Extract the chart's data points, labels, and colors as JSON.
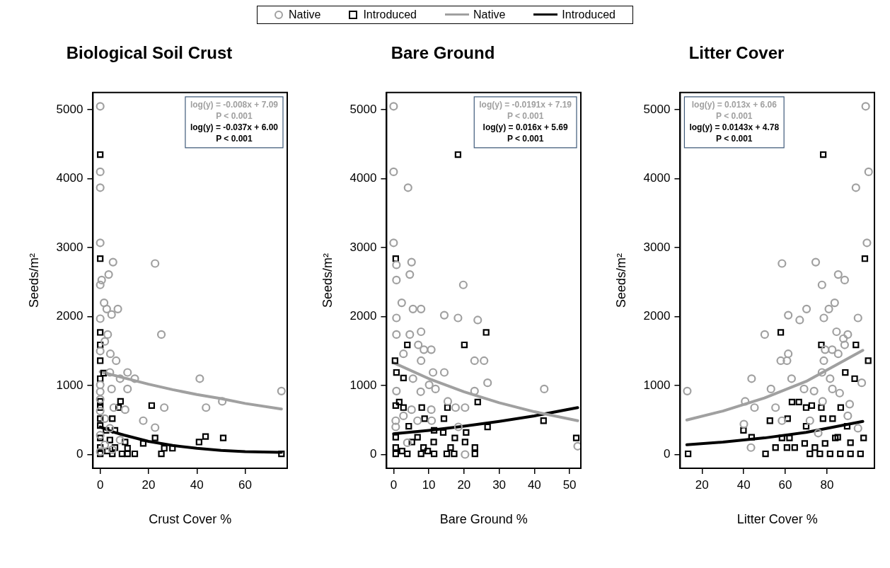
{
  "chart_data": [
    {
      "type": "scatter",
      "title": "Biological Soil Crust",
      "xlabel": "Crust Cover %",
      "ylabel": "Seeds/m²",
      "xlim": [
        -3,
        77.4
      ],
      "xticks": [
        0,
        20,
        40,
        60
      ],
      "ylim": [
        -200,
        5250
      ],
      "yticks": [
        0,
        1000,
        2000,
        3000,
        4000,
        5000
      ],
      "grid": false,
      "legend": "top",
      "annotations": [
        "log(y) = -0.008x + 7.09",
        "P < 0.001",
        "log(y) = -0.037x + 6.00",
        "P < 0.001"
      ],
      "series": [
        {
          "name": "Native",
          "type": "scatter",
          "marker": "circle",
          "color": "#a0a0a0",
          "x": [
            0,
            0,
            0,
            0,
            5.3,
            22.7,
            3.5,
            0.6,
            0,
            1.6,
            2.7,
            7.3,
            4.7,
            0,
            25.3,
            3.1,
            4.2,
            6.6,
            11.3,
            4,
            14.3,
            8.2,
            41.2,
            75,
            4.7,
            11.3,
            0,
            0,
            26.5,
            43.8,
            50.5,
            10.3,
            5.6,
            17.8,
            22.7,
            0,
            0,
            1.9,
            4,
            0,
            1.9,
            5,
            0,
            8.2,
            0,
            1.9
          ],
          "values": [
            5050,
            4100,
            3870,
            3070,
            2790,
            2770,
            2610,
            2530,
            2460,
            2200,
            2110,
            2110,
            2030,
            1970,
            1740,
            1740,
            1460,
            1360,
            1190,
            1190,
            1100,
            1100,
            1100,
            920,
            950,
            950,
            1010,
            910,
            680,
            680,
            770,
            650,
            680,
            490,
            390,
            800,
            630,
            520,
            380,
            280,
            140,
            70,
            40,
            210,
            1500,
            1640
          ]
        },
        {
          "name": "Introduced",
          "type": "scatter",
          "marker": "square",
          "color": "#000000",
          "x": [
            0,
            0,
            0,
            0,
            0,
            1.4,
            0,
            0,
            8.4,
            21.3,
            7.6,
            0,
            5,
            0,
            0,
            2.4,
            6.1,
            0,
            22.7,
            43.6,
            50.9,
            40.9,
            17.8,
            10.3,
            4,
            0,
            6.1,
            11.3,
            26.5,
            29.9,
            0,
            5,
            9,
            11.3,
            14.3,
            25.3,
            75,
            2.9
          ],
          "values": [
            4350,
            2840,
            1770,
            1590,
            1360,
            1180,
            1100,
            770,
            770,
            710,
            680,
            680,
            520,
            520,
            420,
            350,
            350,
            240,
            240,
            260,
            240,
            180,
            160,
            180,
            210,
            100,
            100,
            90,
            90,
            90,
            10,
            10,
            10,
            10,
            10,
            10,
            10,
            50
          ]
        },
        {
          "name": "Native",
          "type": "line",
          "marker": "none",
          "color": "#a0a0a0",
          "x": [
            0,
            10,
            20,
            30,
            40,
            50,
            60,
            75
          ],
          "values": [
            1200,
            1110,
            1020,
            940,
            870,
            810,
            740,
            660
          ]
        },
        {
          "name": "Introduced",
          "type": "line",
          "marker": "none",
          "color": "#000000",
          "x": [
            0,
            5,
            10,
            20,
            30,
            40,
            50,
            60,
            75
          ],
          "values": [
            400,
            330,
            280,
            190,
            130,
            90,
            60,
            40,
            30
          ]
        }
      ]
    },
    {
      "type": "scatter",
      "title": "Bare Ground",
      "xlabel": "Bare Ground %",
      "ylabel": "Seeds/m²",
      "xlim": [
        -2,
        53.2
      ],
      "xticks": [
        0,
        10,
        20,
        30,
        40,
        50
      ],
      "ylim": [
        -200,
        5250
      ],
      "yticks": [
        0,
        1000,
        2000,
        3000,
        4000,
        5000
      ],
      "grid": false,
      "annotations": [
        "log(y) = -0.0191x + 7.19",
        "P < 0.001",
        "log(y) = 0.016x + 5.69",
        "P < 0.001"
      ],
      "series": [
        {
          "type": "scatter",
          "marker": "circle",
          "color": "#a0a0a0",
          "x": [
            0,
            0,
            4.1,
            0,
            5.1,
            0.8,
            4.6,
            0.8,
            19.8,
            2.3,
            5.5,
            7.8,
            14.4,
            18.3,
            23.9,
            0.8,
            0.8,
            4.6,
            7.8,
            7,
            8.6,
            10.7,
            2.8,
            7.8,
            23,
            25.7,
            11.2,
            14.4,
            26.7,
            42.8,
            5.5,
            10.1,
            11.9,
            7.7,
            0.8,
            23,
            15.4,
            17.6,
            20.3,
            10.7,
            5.1,
            2.8,
            0.6,
            6.8,
            10.8,
            18.4,
            0.6,
            20.3,
            3.9,
            52.3
          ],
          "values": [
            5050,
            4100,
            3870,
            3070,
            2790,
            2750,
            2610,
            2530,
            2460,
            2200,
            2110,
            2110,
            2020,
            1980,
            1950,
            1980,
            1740,
            1740,
            1780,
            1590,
            1520,
            1520,
            1460,
            1360,
            1360,
            1360,
            1190,
            1190,
            1040,
            950,
            1100,
            1010,
            950,
            910,
            920,
            920,
            770,
            680,
            680,
            650,
            650,
            560,
            490,
            490,
            490,
            400,
            400,
            0,
            170,
            120
          ]
        },
        {
          "type": "scatter",
          "marker": "square",
          "color": "#000000",
          "x": [
            18.3,
            0.6,
            26.3,
            20.1,
            3.9,
            0.4,
            0.8,
            2.8,
            23.9,
            1.6,
            0.6,
            2.8,
            8,
            15.3,
            8.8,
            14.3,
            42.6,
            4.3,
            26.7,
            20.6,
            11.5,
            51.9,
            17.4,
            14.1,
            6.8,
            0.6,
            20.3,
            11.4,
            5.2,
            23.1,
            0.6,
            16.2,
            8.5,
            0.6,
            3.9,
            7.8,
            11.5,
            15.1,
            17.2,
            23.1,
            2.4,
            9.7
          ],
          "values": [
            4350,
            2840,
            1770,
            1590,
            1590,
            1360,
            1190,
            1110,
            760,
            760,
            710,
            680,
            680,
            680,
            520,
            520,
            490,
            410,
            400,
            320,
            350,
            240,
            240,
            320,
            250,
            250,
            180,
            180,
            180,
            100,
            100,
            100,
            100,
            10,
            10,
            10,
            10,
            10,
            10,
            10,
            50,
            50
          ]
        },
        {
          "type": "line",
          "marker": "none",
          "color": "#a0a0a0",
          "x": [
            0,
            10,
            20,
            30,
            40,
            52.3
          ],
          "values": [
            1330,
            1100,
            910,
            750,
            620,
            490
          ]
        },
        {
          "type": "line",
          "marker": "none",
          "color": "#000000",
          "x": [
            0,
            10,
            20,
            30,
            40,
            52.3
          ],
          "values": [
            300,
            350,
            410,
            480,
            560,
            680
          ]
        }
      ]
    },
    {
      "type": "scatter",
      "title": "Litter Cover",
      "xlabel": "Litter Cover %",
      "ylabel": "Seeds/m²",
      "xlim": [
        9.5,
        102.8
      ],
      "xticks": [
        20,
        40,
        60,
        80
      ],
      "ylim": [
        -200,
        5250
      ],
      "yticks": [
        0,
        1000,
        2000,
        3000,
        4000,
        5000
      ],
      "grid": false,
      "annotations": [
        "log(y) = 0.013x + 6.06",
        "P < 0.001",
        "log(y) = 0.0143x + 4.78",
        "P < 0.001"
      ],
      "series": [
        {
          "type": "scatter",
          "marker": "circle",
          "color": "#a0a0a0",
          "x": [
            98.6,
            100,
            93.9,
            99.2,
            58.4,
            74.6,
            85.4,
            88.5,
            77.6,
            83.7,
            61.4,
            70.2,
            80.9,
            66.9,
            78.5,
            94.9,
            50.1,
            84.6,
            90,
            87.9,
            88.5,
            61.4,
            57.8,
            60.8,
            79.1,
            82.5,
            85.4,
            78.5,
            43.8,
            63,
            77.6,
            81.5,
            96.7,
            12.9,
            53.1,
            69,
            73.8,
            82.6,
            86.1,
            40.7,
            45.2,
            55.3,
            77.9,
            90.9,
            43.5,
            40.1,
            58.4,
            71.8,
            90,
            94.9,
            75.8
          ],
          "values": [
            5050,
            4100,
            3870,
            3070,
            2770,
            2790,
            2610,
            2530,
            2460,
            2200,
            2020,
            2110,
            2110,
            1950,
            1980,
            1980,
            1740,
            1780,
            1740,
            1680,
            1590,
            1460,
            1360,
            1360,
            1520,
            1520,
            1460,
            1360,
            1100,
            1100,
            1190,
            1100,
            1040,
            920,
            950,
            950,
            920,
            950,
            890,
            770,
            680,
            680,
            770,
            730,
            100,
            440,
            490,
            490,
            560,
            380,
            310
          ]
        },
        {
          "type": "scatter",
          "marker": "square",
          "color": "#000000",
          "x": [
            78.2,
            98.2,
            57.8,
            77.3,
            93.9,
            99.8,
            88.8,
            93.3,
            63.2,
            66.5,
            72.7,
            70,
            77.3,
            86.6,
            52.6,
            61.1,
            78.1,
            82.7,
            70,
            89.7,
            39.9,
            43.8,
            58.4,
            62,
            85.2,
            97.6,
            69.3,
            79.1,
            91.3,
            13.3,
            50.5,
            55.3,
            60.8,
            64.5,
            71.8,
            76.6,
            81.5,
            86.4,
            91.3,
            96.1,
            74.2,
            84
          ],
          "values": [
            4350,
            2840,
            1770,
            1590,
            1590,
            1360,
            1190,
            1100,
            760,
            760,
            710,
            680,
            680,
            680,
            490,
            520,
            520,
            520,
            410,
            410,
            350,
            250,
            240,
            240,
            250,
            240,
            160,
            160,
            170,
            10,
            10,
            100,
            100,
            100,
            10,
            10,
            10,
            10,
            10,
            10,
            100,
            240
          ]
        },
        {
          "type": "line",
          "marker": "none",
          "color": "#a0a0a0",
          "x": [
            12.7,
            30,
            50,
            70,
            97.2
          ],
          "values": [
            500,
            630,
            820,
            1060,
            1510
          ]
        },
        {
          "type": "line",
          "marker": "none",
          "color": "#000000",
          "x": [
            12.7,
            30,
            50,
            70,
            97.2
          ],
          "values": [
            140,
            180,
            240,
            320,
            480
          ]
        }
      ]
    }
  ]
}
